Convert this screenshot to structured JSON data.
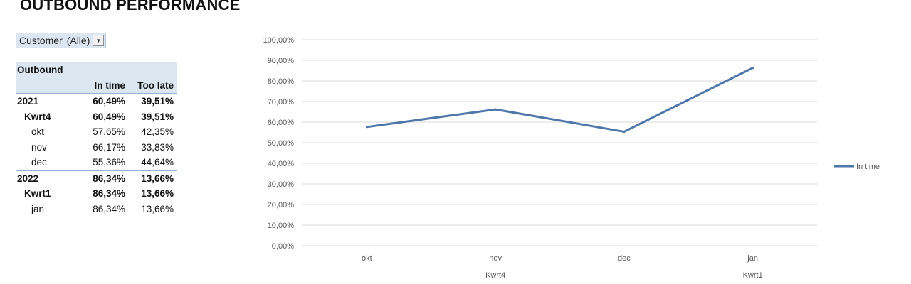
{
  "page": {
    "title": "OUTBOUND PERFORMANCE"
  },
  "filter": {
    "label": "Customer",
    "value": "(Alle)"
  },
  "pivot": {
    "title": "Outbound",
    "col_in_time": "In time",
    "col_too_late": "Too late",
    "rows": [
      {
        "label": "2021",
        "in_time": "60,49%",
        "too_late": "39,51%"
      },
      {
        "label": "Kwrt4",
        "in_time": "60,49%",
        "too_late": "39,51%"
      },
      {
        "label": "okt",
        "in_time": "57,65%",
        "too_late": "42,35%"
      },
      {
        "label": "nov",
        "in_time": "66,17%",
        "too_late": "33,83%"
      },
      {
        "label": "dec",
        "in_time": "55,36%",
        "too_late": "44,64%"
      },
      {
        "label": "2022",
        "in_time": "86,34%",
        "too_late": "13,66%"
      },
      {
        "label": "Kwrt1",
        "in_time": "86,34%",
        "too_late": "13,66%"
      },
      {
        "label": "jan",
        "in_time": "86,34%",
        "too_late": "13,66%"
      }
    ]
  },
  "chart_data": {
    "type": "line",
    "categories": [
      "okt",
      "nov",
      "dec",
      "jan"
    ],
    "groups": [
      {
        "label": "Kwrt4",
        "categories": [
          "okt",
          "nov",
          "dec"
        ]
      },
      {
        "label": "Kwrt1",
        "categories": [
          "jan"
        ]
      }
    ],
    "series": [
      {
        "name": "In time",
        "values": [
          0.5765,
          0.6617,
          0.5536,
          0.8634
        ],
        "color": "#4f77aa"
      }
    ],
    "ylim": [
      0,
      1
    ],
    "yticks": [
      "0,00%",
      "10,00%",
      "20,00%",
      "30,00%",
      "40,00%",
      "50,00%",
      "60,00%",
      "70,00%",
      "80,00%",
      "90,00%",
      "100,00%"
    ],
    "grid": true,
    "legend": "right",
    "gridline_color": "#d9d9d9"
  }
}
